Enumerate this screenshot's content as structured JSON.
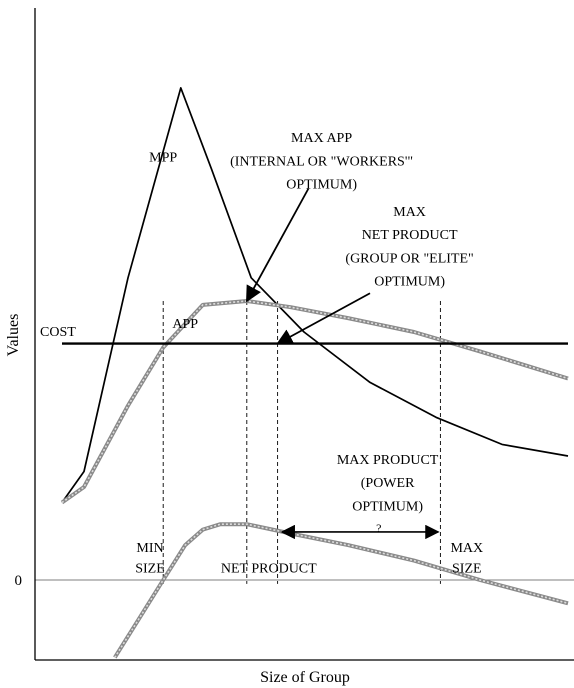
{
  "chart_data": {
    "type": "line",
    "title": "",
    "xlabel": "Size of Group",
    "ylabel": "Values",
    "ylim": [
      -1,
      7
    ],
    "xlim": [
      0,
      11.5
    ],
    "grid": false,
    "y_ticks": [
      {
        "value": 0,
        "label": "0"
      }
    ],
    "series": [
      {
        "name": "MPP",
        "x": [
          0,
          0.5,
          1.5,
          2.7,
          3.4,
          4.3,
          5.5,
          7,
          8.5,
          10,
          11.5
        ],
        "y": [
          1,
          1.4,
          3.9,
          6.35,
          5.3,
          3.9,
          3.2,
          2.55,
          2.1,
          1.75,
          1.6
        ]
      },
      {
        "name": "APP",
        "x": [
          0,
          0.5,
          1.5,
          2.3,
          3.2,
          4.2,
          5.2,
          6.5,
          8,
          9.5,
          11.5
        ],
        "y": [
          1,
          1.2,
          2.25,
          3.0,
          3.55,
          3.6,
          3.52,
          3.38,
          3.2,
          2.95,
          2.6
        ]
      },
      {
        "name": "NET PRODUCT",
        "x": [
          1.2,
          2.3,
          2.8,
          3.2,
          3.6,
          4.2,
          5.2,
          6.5,
          8,
          9.5,
          11.5
        ],
        "y": [
          -1,
          0,
          0.45,
          0.65,
          0.72,
          0.72,
          0.6,
          0.45,
          0.25,
          0,
          -0.3
        ]
      },
      {
        "name": "COST",
        "x": [
          0,
          11.5
        ],
        "y": [
          3.05,
          3.05
        ]
      }
    ],
    "reference_lines_x": [
      2.3,
      4.2,
      4.9,
      8.6
    ],
    "annotations": [
      {
        "text": "MPP",
        "x": 2.3,
        "y": 5.4
      },
      {
        "text": "APP",
        "x": 2.8,
        "y": 3.25
      },
      {
        "text": "COST",
        "x": -0.2,
        "y": 3.15
      },
      {
        "text": "MAX APP",
        "x": 5.9,
        "y": 5.65
      },
      {
        "text": "(INTERNAL OR \"WORKERS'\"",
        "x": 5.9,
        "y": 5.35
      },
      {
        "text": "OPTIMUM)",
        "x": 5.9,
        "y": 5.05
      },
      {
        "text": "MAX",
        "x": 7.9,
        "y": 4.7
      },
      {
        "text": "NET PRODUCT",
        "x": 7.9,
        "y": 4.4
      },
      {
        "text": "(GROUP OR \"ELITE\"",
        "x": 7.9,
        "y": 4.1
      },
      {
        "text": "OPTIMUM)",
        "x": 7.9,
        "y": 3.8
      },
      {
        "text": "MAX PRODUCT",
        "x": 7.4,
        "y": 1.5
      },
      {
        "text": "(POWER",
        "x": 7.4,
        "y": 1.2
      },
      {
        "text": "OPTIMUM)",
        "x": 7.4,
        "y": 0.9
      },
      {
        "text": "?",
        "x": 7.2,
        "y": 0.62
      },
      {
        "text": "MIN",
        "x": 2.0,
        "y": 0.36
      },
      {
        "text": "SIZE",
        "x": 2.0,
        "y": 0.1
      },
      {
        "text": "NET PRODUCT",
        "x": 4.7,
        "y": 0.1
      },
      {
        "text": "MAX",
        "x": 9.2,
        "y": 0.36
      },
      {
        "text": "SIZE",
        "x": 9.2,
        "y": 0.1
      }
    ],
    "arrows": [
      {
        "from": [
          5.6,
          5.05
        ],
        "to": [
          4.2,
          3.6
        ]
      },
      {
        "from": [
          7.0,
          3.7
        ],
        "to": [
          4.9,
          3.05
        ]
      }
    ],
    "double_arrow": {
      "from": [
        5.0,
        0.62
      ],
      "to": [
        8.55,
        0.62
      ]
    }
  }
}
